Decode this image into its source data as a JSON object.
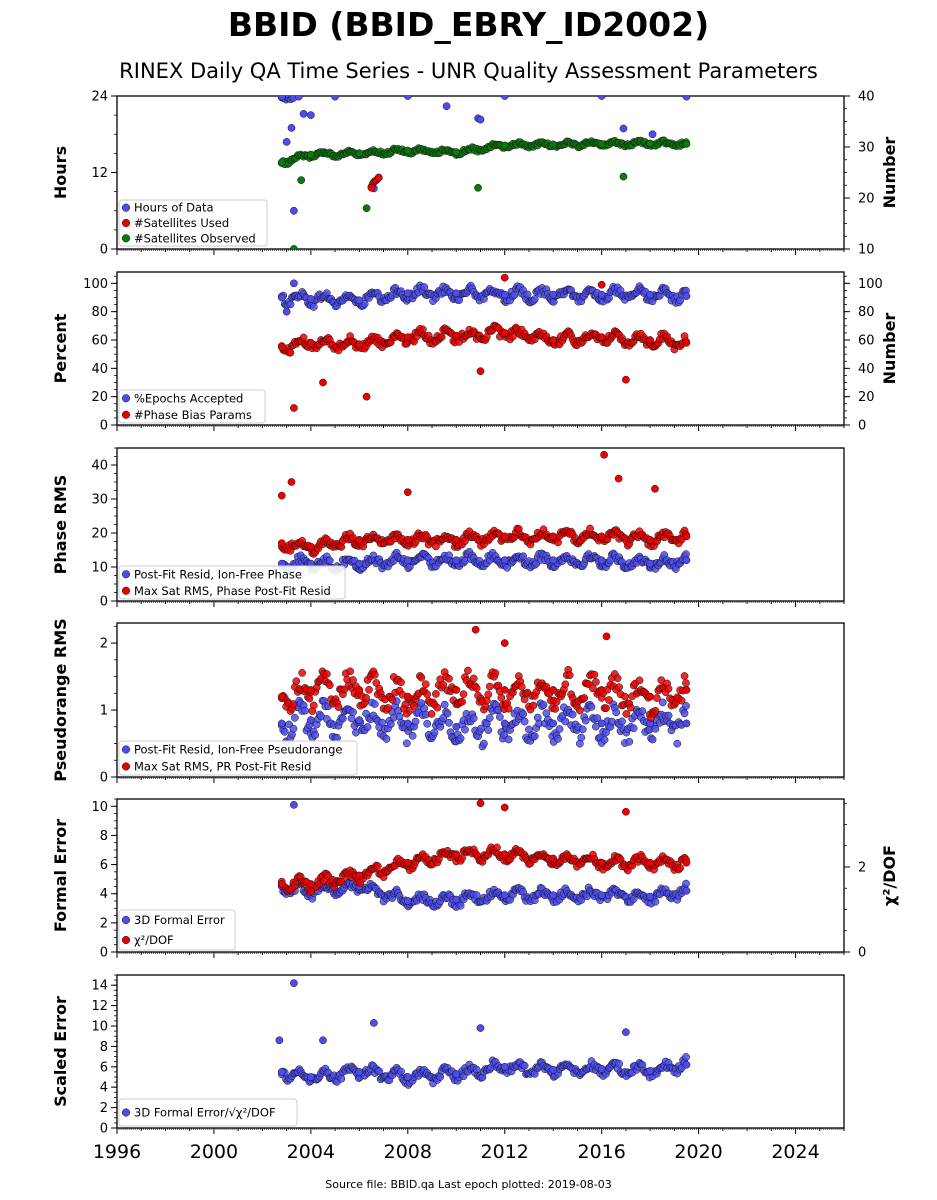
{
  "header": {
    "title": "BBID (BBID_EBRY_ID2002)",
    "subtitle": "RINEX Daily QA Time Series - UNR Quality Assessment Parameters"
  },
  "footer": {
    "text": "Source file: BBID.qa Last epoch plotted: 2019-08-03"
  },
  "colors": {
    "blue": "#4c4cf0",
    "red": "#ee0000",
    "green": "#0a7a0a",
    "edge": "#111111"
  },
  "chart_data": [
    {
      "type": "scatter",
      "ylabel": "Hours",
      "ylim": [
        0,
        24
      ],
      "yticks": [
        "0",
        "12",
        "24"
      ],
      "right_ylabel": "Number",
      "right_ylim": [
        10,
        40
      ],
      "right_yticks": [
        "10",
        "20",
        "30",
        "40"
      ],
      "xlim": [
        1996,
        2026
      ],
      "xticks": [
        "1996",
        "2000",
        "2004",
        "2008",
        "2012",
        "2016",
        "2020",
        "2024"
      ],
      "legend_position": "lower-left",
      "series": [
        {
          "name": "Hours of Data",
          "axis": "left",
          "color": "blue",
          "x": [
            2002.8,
            2003.5,
            2005.0,
            2008.0,
            2012.0,
            2016.0,
            2019.5,
            2003.0,
            2003.2,
            2003.3,
            2003.7,
            2004.0,
            2006.6,
            2009.6,
            2010.9,
            2011.0,
            2016.9,
            2018.1
          ],
          "y": [
            23.9,
            23.9,
            23.9,
            24.0,
            24.0,
            24.0,
            23.9,
            16.8,
            19.0,
            6.0,
            21.2,
            21.0,
            9.5,
            22.4,
            20.5,
            20.3,
            18.9,
            18.0
          ]
        },
        {
          "name": "#Satellites Used",
          "axis": "right",
          "color": "red",
          "x": [
            2006.5,
            2006.8
          ],
          "y": [
            22.0,
            24.0
          ]
        },
        {
          "name": "#Satellites Observed",
          "axis": "right",
          "color": "green",
          "x": [
            2002.8,
            2004.0,
            2006.0,
            2008.0,
            2010.0,
            2012.0,
            2014.0,
            2016.0,
            2018.0,
            2019.5,
            2003.3,
            2003.6,
            2006.3,
            2010.9,
            2016.9
          ],
          "y": [
            27.0,
            28.5,
            28.8,
            29.3,
            29.0,
            30.3,
            30.5,
            30.6,
            30.7,
            30.6,
            10.0,
            23.5,
            18.0,
            22.0,
            24.2
          ]
        }
      ]
    },
    {
      "type": "scatter",
      "ylabel": "Percent",
      "ylim": [
        0,
        108
      ],
      "yticks": [
        "0",
        "20",
        "40",
        "60",
        "80",
        "100"
      ],
      "right_ylabel": "Number",
      "right_ylim": [
        0,
        108
      ],
      "right_yticks": [
        "0",
        "20",
        "40",
        "60",
        "80",
        "100"
      ],
      "xlim": [
        1996,
        2026
      ],
      "legend_position": "lower-left",
      "series": [
        {
          "name": "%Epochs Accepted",
          "axis": "left",
          "color": "blue",
          "x": [
            2002.8,
            2004.0,
            2006.0,
            2008.0,
            2010.0,
            2012.0,
            2014.0,
            2016.0,
            2018.0,
            2019.5,
            2003.3,
            2003.0
          ],
          "y": [
            90,
            89,
            88,
            93,
            93,
            92,
            92,
            92,
            92,
            91,
            100,
            80
          ]
        },
        {
          "name": "#Phase Bias Params",
          "axis": "right",
          "color": "red",
          "x": [
            2002.8,
            2004.0,
            2006.0,
            2008.0,
            2010.0,
            2012.0,
            2014.0,
            2016.0,
            2018.0,
            2019.5,
            2003.3,
            2004.5,
            2006.3,
            2012.0,
            2016.0,
            2017.0,
            2011.0
          ],
          "y": [
            55,
            58,
            57,
            62,
            63,
            65,
            60,
            62,
            60,
            58,
            12,
            30,
            20,
            104,
            99,
            32,
            38
          ]
        }
      ]
    },
    {
      "type": "scatter",
      "ylabel": "Phase RMS",
      "ylim": [
        0,
        45
      ],
      "yticks": [
        "0",
        "10",
        "20",
        "30",
        "40"
      ],
      "xlim": [
        1996,
        2026
      ],
      "legend_position": "lower-left",
      "series": [
        {
          "name": "Post-Fit Resid, Ion-Free Phase",
          "axis": "left",
          "color": "blue",
          "x": [
            2002.8,
            2004.0,
            2006.0,
            2008.0,
            2010.0,
            2012.0,
            2014.0,
            2016.0,
            2018.0,
            2019.5
          ],
          "y": [
            11,
            11,
            11,
            12,
            12,
            12,
            12,
            12,
            11,
            12
          ]
        },
        {
          "name": "Max Sat RMS, Phase Post-Fit Resid",
          "axis": "left",
          "color": "red",
          "x": [
            2002.8,
            2004.0,
            2006.0,
            2008.0,
            2010.0,
            2012.0,
            2014.0,
            2016.0,
            2018.0,
            2019.5,
            2002.8,
            2003.2,
            2008.0,
            2016.1,
            2016.7,
            2018.2
          ],
          "y": [
            17,
            16,
            18,
            18,
            18,
            19,
            19,
            19,
            18,
            19,
            31,
            35,
            32,
            43,
            36,
            33
          ]
        }
      ]
    },
    {
      "type": "scatter",
      "ylabel": "Pseudorange RMS",
      "ylim": [
        0,
        2.3
      ],
      "yticks": [
        "0",
        "1",
        "2"
      ],
      "xlim": [
        1996,
        2026
      ],
      "legend_position": "lower-left",
      "series": [
        {
          "name": "Post-Fit Resid, Ion-Free Pseudorange",
          "axis": "left",
          "color": "blue",
          "x": [
            2002.8,
            2004.0,
            2006.0,
            2008.0,
            2010.0,
            2012.0,
            2014.0,
            2016.0,
            2018.0,
            2019.5
          ],
          "y": [
            0.8,
            0.85,
            0.85,
            0.8,
            0.75,
            0.8,
            0.8,
            0.8,
            0.8,
            0.8
          ]
        },
        {
          "name": "Max Sat RMS, PR Post-Fit Resid",
          "axis": "left",
          "color": "red",
          "x": [
            2002.8,
            2004.0,
            2006.0,
            2008.0,
            2010.0,
            2012.0,
            2014.0,
            2016.0,
            2018.0,
            2019.5,
            2010.8,
            2012.0,
            2016.2
          ],
          "y": [
            1.2,
            1.3,
            1.3,
            1.2,
            1.3,
            1.3,
            1.3,
            1.3,
            1.2,
            1.3,
            2.2,
            2.0,
            2.1
          ]
        }
      ]
    },
    {
      "type": "scatter",
      "ylabel": "Formal Error",
      "ylim": [
        0,
        10.5
      ],
      "yticks": [
        "0",
        "2",
        "4",
        "6",
        "8",
        "10"
      ],
      "right_ylabel": "χ²/DOF",
      "right_ylim": [
        0,
        3.6
      ],
      "right_yticks": [
        "0",
        "2"
      ],
      "xlim": [
        1996,
        2026
      ],
      "legend_position": "lower-left",
      "series": [
        {
          "name": "3D Formal Error",
          "axis": "left",
          "color": "blue",
          "x": [
            2002.8,
            2004.0,
            2006.0,
            2008.0,
            2010.0,
            2012.0,
            2014.0,
            2016.0,
            2018.0,
            2019.5,
            2003.3
          ],
          "y": [
            4.5,
            4.2,
            4.5,
            3.5,
            3.6,
            3.9,
            3.9,
            3.9,
            3.8,
            4.2,
            10.1
          ]
        },
        {
          "name": "χ²/DOF",
          "axis": "right",
          "color": "red",
          "x": [
            2002.8,
            2004.0,
            2006.0,
            2008.0,
            2010.0,
            2012.0,
            2014.0,
            2016.0,
            2018.0,
            2019.5,
            2011.0,
            2012.0,
            2017.0
          ],
          "y": [
            1.6,
            1.6,
            1.8,
            2.1,
            2.3,
            2.3,
            2.2,
            2.1,
            2.1,
            2.1,
            3.5,
            3.4,
            3.3
          ]
        }
      ]
    },
    {
      "type": "scatter",
      "ylabel": "Scaled Error",
      "ylim": [
        0,
        15
      ],
      "yticks": [
        "0",
        "2",
        "4",
        "6",
        "8",
        "10",
        "12",
        "14"
      ],
      "xlim": [
        1996,
        2026
      ],
      "legend_position": "lower-left",
      "series": [
        {
          "name": "3D Formal Error/√χ²/DOF",
          "axis": "left",
          "color": "blue",
          "x": [
            2002.8,
            2004.0,
            2006.0,
            2008.0,
            2010.0,
            2012.0,
            2014.0,
            2016.0,
            2018.0,
            2019.5,
            2003.3,
            2006.6,
            2011.0,
            2017.0,
            2002.7,
            2004.5
          ],
          "y": [
            5.5,
            5.0,
            5.5,
            5.0,
            5.3,
            6.0,
            5.7,
            5.8,
            5.6,
            6.2,
            14.2,
            10.3,
            9.8,
            9.4,
            8.6,
            8.6
          ]
        }
      ]
    }
  ]
}
